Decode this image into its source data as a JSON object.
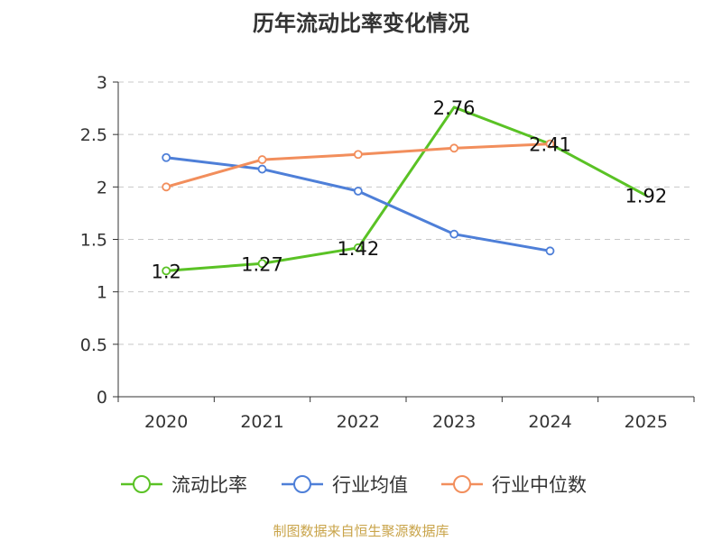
{
  "title": "历年流动比率变化情况",
  "source": "制图数据来自恒生聚源数据库",
  "colors": {
    "title": "#333333",
    "axis": "#333333",
    "grid": "#c8c8c8",
    "source": "#c9a44a"
  },
  "chart_data": {
    "type": "line",
    "categories": [
      "2020",
      "2021",
      "2022",
      "2023",
      "2024",
      "2025"
    ],
    "ylim": [
      0,
      3
    ],
    "yticks": [
      "0",
      "0.5",
      "1",
      "1.5",
      "2",
      "2.5",
      "3"
    ],
    "grid": true,
    "legend_position": "bottom",
    "series": [
      {
        "name": "流动比率",
        "color": "#5ac225",
        "values": [
          1.2,
          1.27,
          1.42,
          2.76,
          2.41,
          1.92
        ],
        "labels": [
          "1.2",
          "1.27",
          "1.42",
          "2.76",
          "2.41",
          "1.92"
        ],
        "markers": [
          true,
          true,
          true,
          false,
          true,
          false
        ]
      },
      {
        "name": "行业均值",
        "color": "#4e7fd8",
        "values": [
          2.28,
          2.17,
          1.96,
          1.55,
          1.39,
          null
        ],
        "markers": [
          true,
          true,
          true,
          true,
          true,
          false
        ]
      },
      {
        "name": "行业中位数",
        "color": "#f28e5c",
        "values": [
          2.0,
          2.26,
          2.31,
          2.37,
          2.41,
          null
        ],
        "markers": [
          true,
          true,
          true,
          true,
          true,
          false
        ]
      }
    ]
  }
}
